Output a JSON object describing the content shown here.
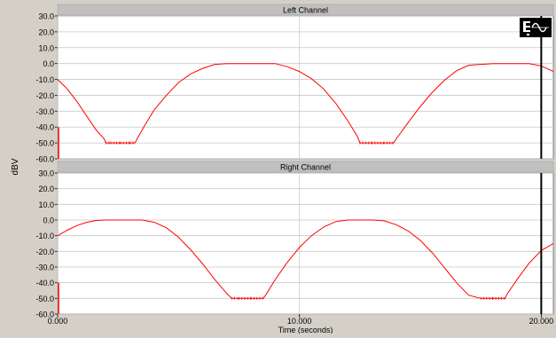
{
  "y_axis_label": "dBV",
  "x_axis_label": "Time (seconds)",
  "x_ticks": [
    "0.000",
    "10.000",
    "20.000"
  ],
  "y_ticks": [
    "30.0",
    "20.0",
    "10.0",
    "0.0",
    "-10.0",
    "-20.0",
    "-30.0",
    "-40.0",
    "-50.0",
    "-60.0"
  ],
  "colors": {
    "trace": "#ff0000",
    "plot_bg": "#ffffff",
    "frame": "#d4d0c8",
    "grid": "#c8c8c8",
    "title_bar": "#c0c0c0",
    "cursor": "#000000"
  },
  "icons": {
    "tool_icon": "signal-generator-icon"
  },
  "cursor_time_seconds": 20.0,
  "chart_data": [
    {
      "type": "line",
      "title": "Left Channel",
      "xlabel": "Time (seconds)",
      "ylabel": "dBV",
      "xlim": [
        0,
        20.5
      ],
      "ylim": [
        -60,
        30
      ],
      "series": [
        {
          "color": "#ff0000",
          "x": [
            0.0,
            0.4,
            0.8,
            1.2,
            1.6,
            1.9,
            2.0,
            2.2,
            2.6,
            3.0,
            3.2,
            3.3,
            3.6,
            4.0,
            4.5,
            5.0,
            5.5,
            6.0,
            6.5,
            7.0,
            8.0,
            9.0,
            9.5,
            10.0,
            10.5,
            11.0,
            11.5,
            12.0,
            12.4,
            12.5,
            13.0,
            13.5,
            13.9,
            14.0,
            14.5,
            15.0,
            15.5,
            16.0,
            16.5,
            17.0,
            18.0,
            19.0,
            19.5,
            20.0,
            20.5
          ],
          "y": [
            -10.0,
            -16.0,
            -24.0,
            -33.0,
            -42.0,
            -47.0,
            -50.0,
            -50.0,
            -50.0,
            -50.0,
            -50.0,
            -47.0,
            -39.0,
            -29.0,
            -20.0,
            -12.0,
            -6.5,
            -3.0,
            -0.5,
            0.0,
            0.0,
            0.0,
            -2.0,
            -5.0,
            -9.5,
            -16.0,
            -25.0,
            -36.0,
            -46.0,
            -50.0,
            -50.0,
            -50.0,
            -50.0,
            -47.5,
            -37.0,
            -27.0,
            -18.0,
            -10.5,
            -4.5,
            -1.0,
            0.0,
            0.0,
            0.0,
            -1.5,
            -5.0
          ]
        }
      ]
    },
    {
      "type": "line",
      "title": "Right Channel",
      "xlabel": "Time (seconds)",
      "ylabel": "dBV",
      "xlim": [
        0,
        20.5
      ],
      "ylim": [
        -60,
        30
      ],
      "series": [
        {
          "color": "#ff0000",
          "x": [
            0.0,
            0.4,
            0.8,
            1.2,
            1.6,
            2.0,
            3.0,
            3.5,
            4.0,
            4.5,
            5.0,
            5.5,
            6.0,
            6.5,
            7.0,
            7.2,
            7.5,
            8.0,
            8.5,
            8.6,
            9.0,
            9.5,
            10.0,
            10.5,
            11.0,
            11.5,
            12.0,
            12.5,
            13.0,
            13.5,
            14.0,
            14.5,
            15.0,
            15.5,
            16.0,
            16.5,
            17.0,
            17.5,
            18.0,
            18.5,
            18.6,
            19.0,
            19.5,
            20.0,
            20.5
          ],
          "y": [
            -10.0,
            -6.5,
            -3.5,
            -1.5,
            -0.3,
            0.0,
            0.0,
            0.0,
            -1.5,
            -5.0,
            -11.0,
            -19.0,
            -28.0,
            -38.0,
            -47.0,
            -50.0,
            -50.0,
            -50.0,
            -50.0,
            -48.0,
            -38.0,
            -27.0,
            -17.5,
            -10.0,
            -4.5,
            -1.0,
            0.0,
            0.0,
            0.0,
            -0.5,
            -3.0,
            -7.0,
            -13.0,
            -21.0,
            -30.5,
            -40.0,
            -48.0,
            -50.0,
            -50.0,
            -50.0,
            -47.0,
            -38.0,
            -27.5,
            -19.5,
            -15.0
          ]
        }
      ]
    }
  ]
}
